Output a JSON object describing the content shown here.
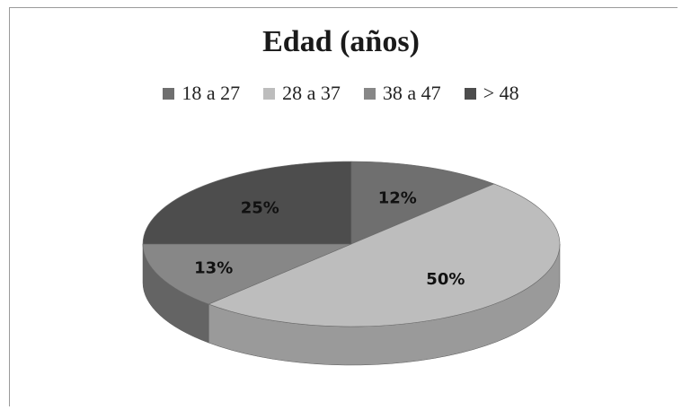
{
  "chart_data": {
    "type": "pie",
    "title": "Edad (años)",
    "categories": [
      "18 a 27",
      "28 a 37",
      "38 a 47",
      "> 48"
    ],
    "values": [
      12,
      50,
      13,
      25
    ],
    "value_labels": [
      "12%",
      "50%",
      "13%",
      "25%"
    ],
    "legend_position": "top",
    "colors": [
      "#6f6f6f",
      "#bdbdbd",
      "#878787",
      "#4d4d4d"
    ],
    "side_colors": [
      "#4f4f4f",
      "#9a9a9a",
      "#646464",
      "#363636"
    ],
    "style": "3d"
  }
}
